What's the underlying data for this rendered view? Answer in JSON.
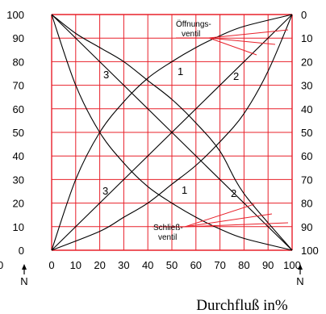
{
  "chart_data": {
    "type": "line",
    "xlabel": "Durchfluß in%",
    "xlim": [
      0,
      100
    ],
    "ylim": [
      0,
      100
    ],
    "x_ticks": [
      "0",
      "10",
      "20",
      "30",
      "40",
      "50",
      "60",
      "70",
      "80",
      "90",
      "100"
    ],
    "left_ticks": [
      "0",
      "10",
      "20",
      "30",
      "40",
      "50",
      "60",
      "70",
      "80",
      "90",
      "100"
    ],
    "right_ticks": [
      "100",
      "90",
      "80",
      "70",
      "60",
      "50",
      "40",
      "30",
      "20",
      "10",
      "0"
    ],
    "axis_marker": "N",
    "left_axis_edge_label": "0",
    "grid": true,
    "grid_color": "#e8202a",
    "series": [
      {
        "name": "1",
        "group": "open",
        "x": [
          0,
          100
        ],
        "y": [
          0,
          100
        ]
      },
      {
        "name": "2",
        "group": "open",
        "x": [
          0,
          20,
          30,
          40,
          50,
          60,
          70,
          80,
          90,
          100
        ],
        "y": [
          0,
          8,
          14,
          20,
          28,
          36,
          46,
          58,
          76,
          100
        ]
      },
      {
        "name": "3",
        "group": "open",
        "x": [
          0,
          10,
          20,
          30,
          40,
          50,
          60,
          70,
          80,
          100
        ],
        "y": [
          0,
          30,
          50,
          63,
          73,
          80,
          86,
          91,
          95,
          100
        ]
      },
      {
        "name": "1",
        "group": "close",
        "x": [
          0,
          100
        ],
        "y": [
          100,
          0
        ]
      },
      {
        "name": "2",
        "group": "close",
        "x": [
          0,
          10,
          20,
          30,
          40,
          50,
          60,
          70,
          80,
          100
        ],
        "y": [
          100,
          92,
          86,
          80,
          72,
          64,
          54,
          42,
          24,
          0
        ]
      },
      {
        "name": "3",
        "group": "close",
        "x": [
          0,
          10,
          20,
          30,
          40,
          50,
          60,
          70,
          80,
          100
        ],
        "y": [
          100,
          70,
          50,
          37,
          27,
          20,
          14,
          9,
          5,
          0
        ]
      }
    ],
    "annotations": [
      {
        "text": "Öffnungs-"
      },
      {
        "text": "ventil"
      },
      {
        "text": "Schließ-"
      },
      {
        "text": "ventil"
      }
    ]
  }
}
